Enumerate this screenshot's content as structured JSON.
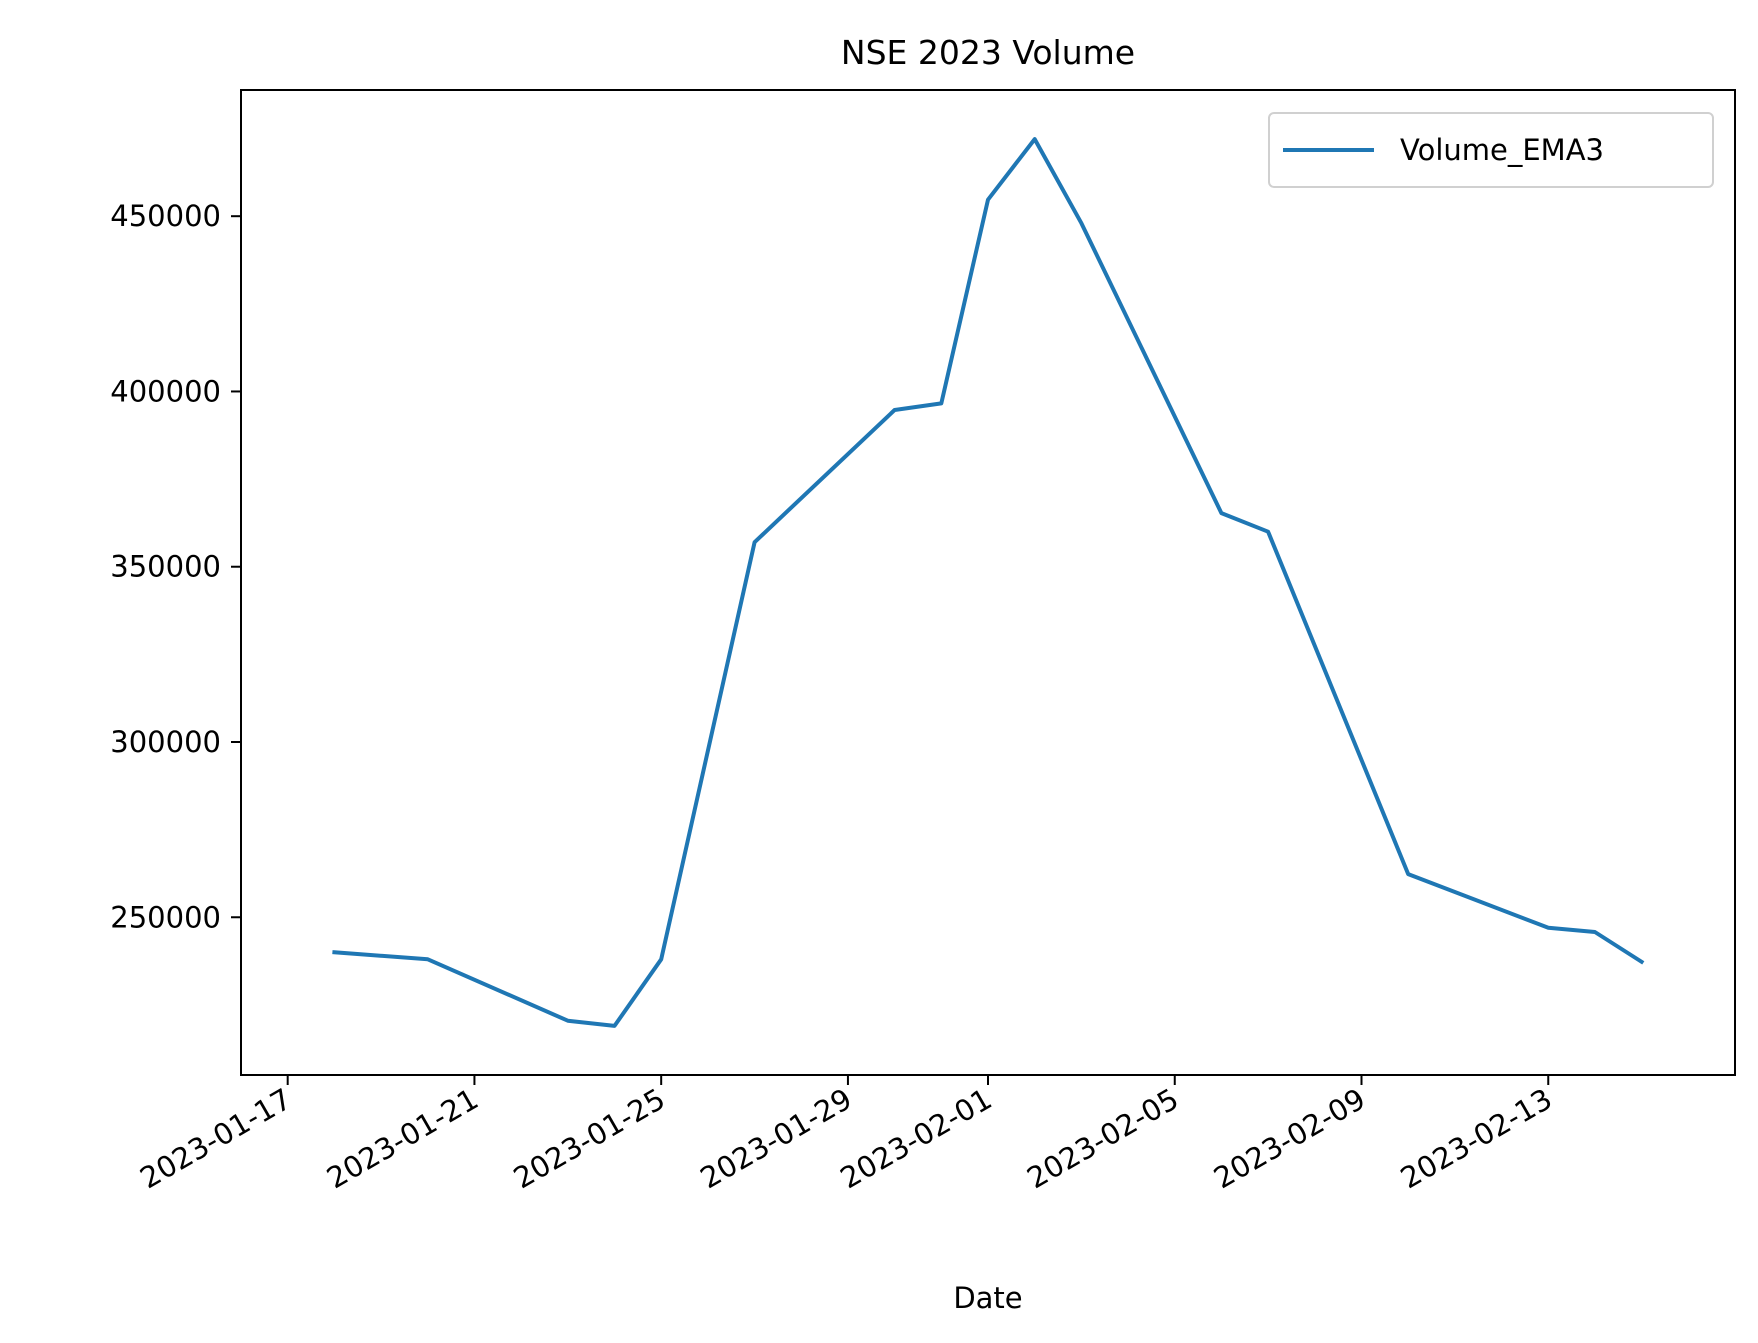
{
  "chart_data": {
    "type": "line",
    "title": "NSE 2023 Volume",
    "xlabel": "Date",
    "ylabel": "",
    "x_ticks": [
      "2023-01-17",
      "2023-01-21",
      "2023-01-25",
      "2023-01-29",
      "2023-02-01",
      "2023-02-05",
      "2023-02-09",
      "2023-02-13"
    ],
    "y_ticks": [
      250000,
      300000,
      350000,
      400000,
      450000
    ],
    "y_tick_labels": [
      "250000",
      "300000",
      "350000",
      "400000",
      "450000"
    ],
    "ylim": [
      205000,
      486000
    ],
    "xlim": [
      "2023-01-16",
      "2023-02-17"
    ],
    "grid": false,
    "legend": {
      "position": "top-right",
      "entries": [
        "Volume_EMA3"
      ]
    },
    "series": [
      {
        "name": "Volume_EMA3",
        "color": "#1f77b4",
        "points": [
          {
            "x": "2023-01-18",
            "y": 240000
          },
          {
            "x": "2023-01-20",
            "y": 238000
          },
          {
            "x": "2023-01-23",
            "y": 220500
          },
          {
            "x": "2023-01-24",
            "y": 219000
          },
          {
            "x": "2023-01-25",
            "y": 238000
          },
          {
            "x": "2023-01-27",
            "y": 357000
          },
          {
            "x": "2023-01-30",
            "y": 394700
          },
          {
            "x": "2023-01-31",
            "y": 396600
          },
          {
            "x": "2023-02-01",
            "y": 454700
          },
          {
            "x": "2023-02-02",
            "y": 472000
          },
          {
            "x": "2023-02-03",
            "y": 448000
          },
          {
            "x": "2023-02-06",
            "y": 365300
          },
          {
            "x": "2023-02-07",
            "y": 360000
          },
          {
            "x": "2023-02-10",
            "y": 262300
          },
          {
            "x": "2023-02-13",
            "y": 247000
          },
          {
            "x": "2023-02-14",
            "y": 245800
          },
          {
            "x": "2023-02-15",
            "y": 237300
          }
        ]
      }
    ]
  }
}
